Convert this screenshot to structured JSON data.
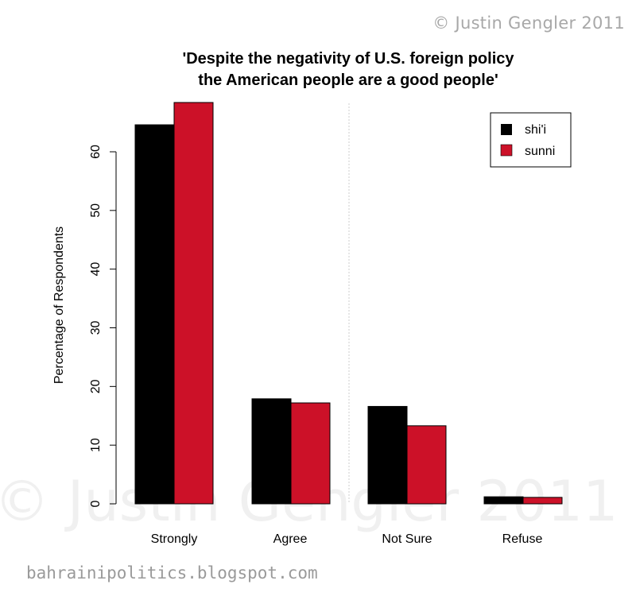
{
  "page": {
    "copyright": "© Justin Gengler 2011",
    "watermark": "© Justin Gengler 2011",
    "blog_url": "bahrainipolitics.blogspot.com"
  },
  "chart_data": {
    "type": "bar",
    "title_lines": [
      "'Despite the negativity of U.S. foreign policy",
      "the American people are a good people'"
    ],
    "xlabel": "",
    "ylabel": "Percentage of Respondents",
    "categories": [
      "Strongly",
      "Agree",
      "Not Sure",
      "Refuse"
    ],
    "series": [
      {
        "name": "shi'i",
        "color": "#000000",
        "values": [
          64.6,
          17.9,
          16.6,
          1.2
        ]
      },
      {
        "name": "sunni",
        "color": "#cc1128",
        "values": [
          68.4,
          17.2,
          13.3,
          1.1
        ]
      }
    ],
    "yticks": [
      0,
      10,
      20,
      30,
      40,
      50,
      60
    ],
    "ylim": [
      0,
      68.4
    ],
    "grid": false,
    "divider_after_category": 1,
    "legend_position": "top-right"
  }
}
